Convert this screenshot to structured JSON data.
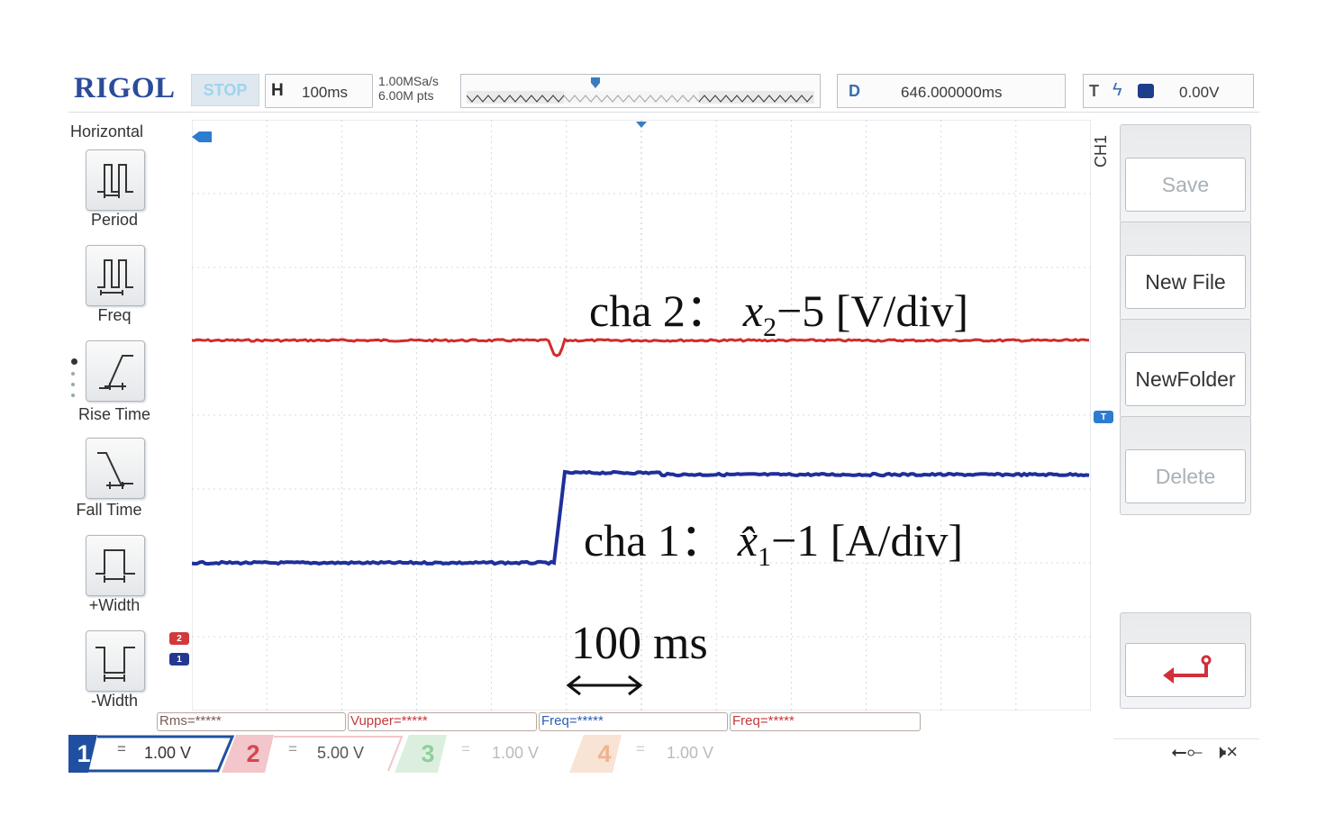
{
  "header": {
    "logo": "RIGOL",
    "run_state": "STOP",
    "timebase_key": "H",
    "timebase_value": "100ms",
    "sample_rate": "1.00MSa/s",
    "memory_depth": "6.00M pts",
    "delay_key": "D",
    "delay_value": "646.000000ms",
    "trigger_key": "T",
    "trigger_level": "0.00V"
  },
  "left_menu": {
    "title": "Horizontal",
    "items": [
      {
        "label": "Period",
        "icon": "period-icon"
      },
      {
        "label": "Freq",
        "icon": "freq-icon"
      },
      {
        "label": "Rise Time",
        "icon": "rise-time-icon"
      },
      {
        "label": "Fall Time",
        "icon": "fall-time-icon"
      },
      {
        "label": "+Width",
        "icon": "positive-width-icon"
      },
      {
        "label": "-Width",
        "icon": "negative-width-icon"
      }
    ]
  },
  "right_menu": {
    "source": "CH1",
    "buttons": [
      {
        "label": "Save",
        "enabled": false
      },
      {
        "label": "New File",
        "enabled": true
      },
      {
        "label": "NewFolder",
        "enabled": true
      },
      {
        "label": "Delete",
        "enabled": false
      }
    ],
    "return_icon": "return-arrow-icon"
  },
  "plot": {
    "ch2_marker": "2",
    "ch1_marker": "1",
    "trigger_marker": "T",
    "annotations": {
      "ch2": {
        "prefix": "cha 2：",
        "var": "x",
        "sub": "2",
        "suffix": "−5 [V/div]"
      },
      "ch1": {
        "prefix": "cha 1：",
        "var": "x̂",
        "sub": "1",
        "suffix": "−1 [A/div]"
      },
      "scale": "100 ms"
    },
    "colors": {
      "ch1": "#1f2f9a",
      "ch2": "#d22b2b",
      "grid": "#c9cfd6"
    }
  },
  "measurements": [
    "Rms=*****",
    "Vupper=*****",
    "Freq=*****",
    "Freq=*****"
  ],
  "channels": [
    {
      "num": "1",
      "coupling": "=",
      "scale": "1.00 V",
      "color": "#1f4fa0",
      "active": true
    },
    {
      "num": "2",
      "coupling": "=",
      "scale": "5.00 V",
      "color": "#d9454c",
      "active": true
    },
    {
      "num": "3",
      "coupling": "=",
      "scale": "1.00 V",
      "color": "#7ec48b",
      "active": false
    },
    {
      "num": "4",
      "coupling": "=",
      "scale": "1.00 V",
      "color": "#e8a070",
      "active": false
    }
  ],
  "status_icons": [
    "usb-icon",
    "speaker-muted-icon"
  ]
}
